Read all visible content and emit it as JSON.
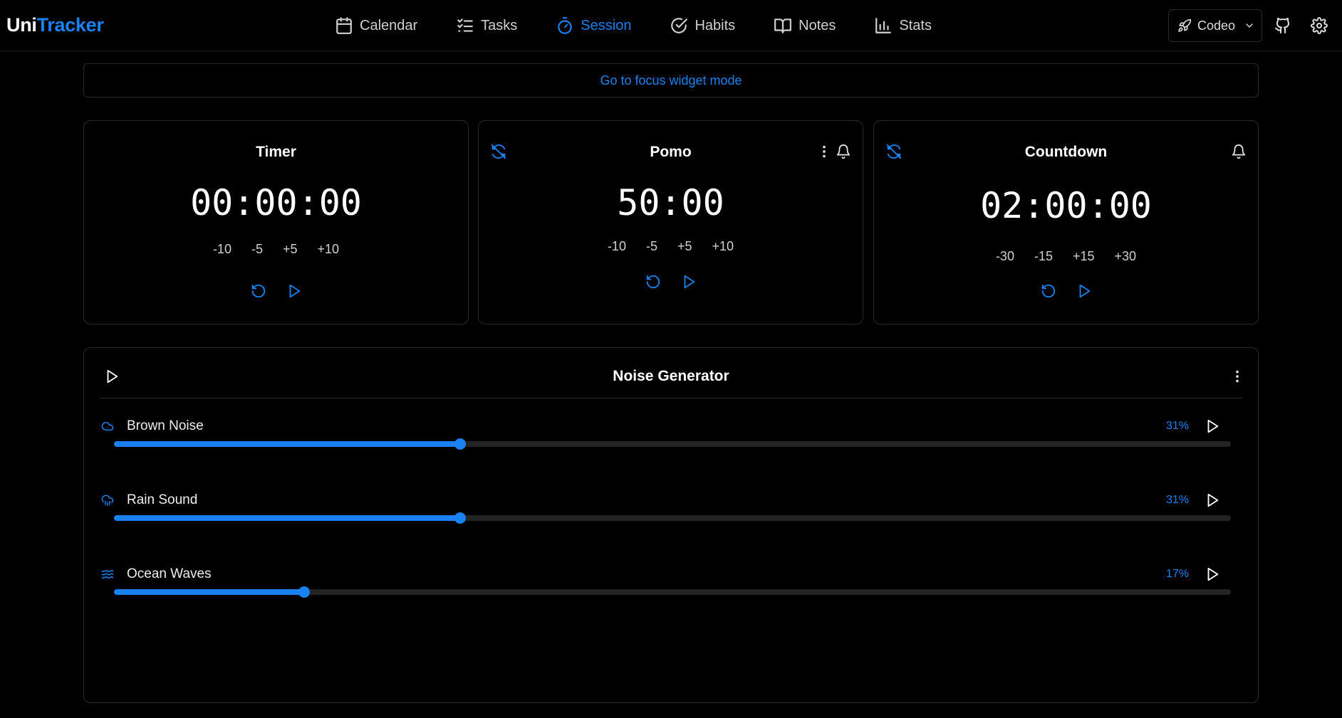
{
  "brand": {
    "part1": "Uni",
    "part2": "Tracker"
  },
  "nav": {
    "calendar": "Calendar",
    "tasks": "Tasks",
    "session": "Session",
    "habits": "Habits",
    "notes": "Notes",
    "stats": "Stats",
    "active": "Session"
  },
  "workspace": {
    "label": "Codeo"
  },
  "focus_link": "Go to focus widget mode",
  "timer": {
    "title": "Timer",
    "time": "00:00:00",
    "adjust": [
      "-10",
      "-5",
      "+5",
      "+10"
    ]
  },
  "pomo": {
    "title": "Pomo",
    "time": "50:00",
    "adjust": [
      "-10",
      "-5",
      "+5",
      "+10"
    ]
  },
  "countdown": {
    "title": "Countdown",
    "time": "02:00:00",
    "adjust": [
      "-30",
      "-15",
      "+15",
      "+30"
    ]
  },
  "noise": {
    "title": "Noise Generator",
    "tracks": [
      {
        "name": "Brown Noise",
        "percent_label": "31%",
        "level": 0.31,
        "icon": "cloud-icon"
      },
      {
        "name": "Rain Sound",
        "percent_label": "31%",
        "level": 0.31,
        "icon": "cloud-rain-icon"
      },
      {
        "name": "Ocean Waves",
        "percent_label": "17%",
        "level": 0.17,
        "icon": "waves-icon"
      }
    ]
  },
  "colors": {
    "accent": "#1a82f0",
    "background": "#000000",
    "border": "#2a2a2a"
  }
}
